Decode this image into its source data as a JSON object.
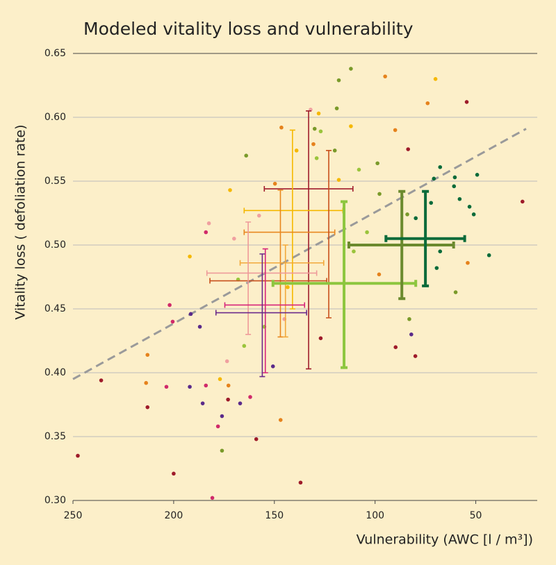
{
  "chart_data": {
    "type": "scatter",
    "title": "Modeled vitality loss and vulnerability",
    "x_label": "Vulnerability (AWC [l / m³])",
    "y_label": "Vitality loss  ( defoliation rate)",
    "xlim": [
      250,
      25
    ],
    "ylim": [
      0.3,
      0.65
    ],
    "xticks": [
      250,
      200,
      150,
      100,
      50
    ],
    "yticks": [
      {
        "value": 0.3,
        "label": "0.30"
      },
      0.35,
      {
        "value": 0.4,
        "label": "0.40"
      },
      0.45,
      {
        "value": 0.5,
        "label": "0.50"
      },
      0.55,
      {
        "value": 0.6,
        "label": "0.60"
      },
      0.65
    ],
    "grid": true,
    "trend_line": {
      "color": "#9a9a9a",
      "x": [
        250,
        25
      ],
      "y": [
        0.395,
        0.591
      ]
    },
    "series": [
      {
        "color": "#0a6b3a",
        "x": [
          67.7,
          70.8,
          60.4,
          49.3,
          60.8,
          53.1,
          51,
          43.4,
          67.7,
          72.2,
          58,
          79.8,
          69.4
        ],
        "values": [
          0.561,
          0.552,
          0.553,
          0.555,
          0.546,
          0.53,
          0.524,
          0.492,
          0.495,
          0.533,
          0.536,
          0.521,
          0.482
        ]
      },
      {
        "color": "#7a9a2a",
        "x": [
          112,
          118,
          119,
          130,
          120,
          98.8,
          84,
          83,
          60,
          176,
          164,
          97.8
        ],
        "values": [
          0.638,
          0.629,
          0.607,
          0.591,
          0.574,
          0.564,
          0.524,
          0.442,
          0.463,
          0.339,
          0.57,
          0.54
        ]
      },
      {
        "color": "#9ac43c",
        "x": [
          127,
          108,
          110.6,
          104,
          129,
          165,
          168,
          155
        ],
        "values": [
          0.589,
          0.559,
          0.495,
          0.51,
          0.568,
          0.421,
          0.473,
          0.436
        ]
      },
      {
        "color": "#f5b800",
        "x": [
          70,
          128,
          112,
          192,
          177,
          143.4,
          139,
          172,
          118
        ],
        "values": [
          0.63,
          0.603,
          0.593,
          0.491,
          0.395,
          0.467,
          0.574,
          0.543,
          0.551
        ]
      },
      {
        "color": "#e5821c",
        "x": [
          95,
          73.9,
          146.5,
          90,
          130.6,
          213,
          213.7,
          146.9,
          172.8,
          98,
          54,
          149.7
        ],
        "values": [
          0.632,
          0.611,
          0.592,
          0.59,
          0.579,
          0.414,
          0.392,
          0.363,
          0.39,
          0.477,
          0.486,
          0.548
        ]
      },
      {
        "color": "#9e1b2a",
        "x": [
          54.5,
          83.6,
          26.8,
          89.8,
          80,
          247.6,
          236,
          213,
          200,
          137,
          159,
          173,
          127
        ],
        "values": [
          0.612,
          0.575,
          0.534,
          0.42,
          0.413,
          0.335,
          0.394,
          0.373,
          0.321,
          0.314,
          0.348,
          0.379,
          0.427
        ]
      },
      {
        "color": "#d02a6a",
        "x": [
          202,
          200.5,
          203.6,
          184,
          180.8,
          162,
          178,
          184
        ],
        "values": [
          0.453,
          0.44,
          0.389,
          0.39,
          0.302,
          0.381,
          0.358,
          0.51
        ]
      },
      {
        "color": "#f0a0a0",
        "x": [
          132,
          182.5,
          170,
          157.6,
          145,
          173.5
        ],
        "values": [
          0.606,
          0.517,
          0.505,
          0.523,
          0.442,
          0.409
        ]
      },
      {
        "color": "#5a2a8a",
        "x": [
          191.5,
          192,
          185.6,
          167,
          176,
          187,
          82,
          150.7
        ],
        "values": [
          0.446,
          0.389,
          0.376,
          0.376,
          0.366,
          0.436,
          0.43,
          0.405
        ]
      }
    ],
    "crosses": [
      {
        "color": "#a01c2c",
        "x": 133,
        "y": 0.544,
        "x_range": [
          155,
          111
        ],
        "y_range": [
          0.403,
          0.605
        ]
      },
      {
        "color": "#f5b800",
        "x": 141,
        "y": 0.527,
        "x_range": [
          165,
          116
        ],
        "y_range": [
          0.45,
          0.59
        ]
      },
      {
        "color": "#e8871e",
        "x": 147,
        "y": 0.51,
        "x_range": [
          165,
          120
        ],
        "y_range": [
          0.428,
          0.543
        ]
      },
      {
        "color": "#c8501c",
        "x": 123,
        "y": 0.472,
        "x_range": [
          182,
          124
        ],
        "y_range": [
          0.443,
          0.574
        ]
      },
      {
        "color": "#f2a93b",
        "x": 144.5,
        "y": 0.486,
        "x_range": [
          167,
          125.5
        ],
        "y_range": [
          0.428,
          0.5
        ]
      },
      {
        "color": "#ee9a9a",
        "x": 163,
        "y": 0.478,
        "x_range": [
          183.5,
          129
        ],
        "y_range": [
          0.43,
          0.518
        ]
      },
      {
        "color": "#d6257a",
        "x": 154.5,
        "y": 0.453,
        "x_range": [
          174.6,
          135
        ],
        "y_range": [
          0.4,
          0.497
        ]
      },
      {
        "color": "#6a2a8a",
        "x": 156,
        "y": 0.447,
        "x_range": [
          179,
          134
        ],
        "y_range": [
          0.397,
          0.493
        ]
      },
      {
        "color": "#8dc63f",
        "x": 115.4,
        "y": 0.47,
        "x_range": [
          150.7,
          79.8
        ],
        "y_range": [
          0.404,
          0.534
        ]
      },
      {
        "color": "#6b8a2e",
        "x": 86.7,
        "y": 0.5,
        "x_range": [
          113,
          61
        ],
        "y_range": [
          0.458,
          0.542
        ]
      },
      {
        "color": "#0a6b3a",
        "x": 75,
        "y": 0.505,
        "x_range": [
          94.6,
          55.5
        ],
        "y_range": [
          0.468,
          0.542
        ]
      }
    ]
  }
}
